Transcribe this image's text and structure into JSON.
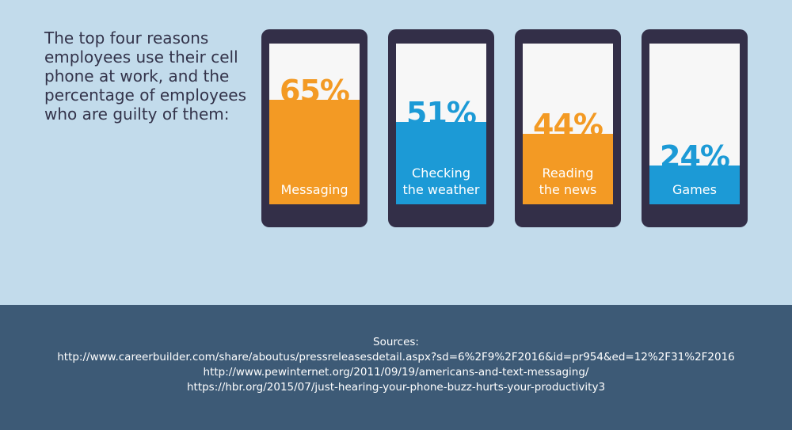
{
  "intro_text": "The top four reasons employees use their cell phone at work, and the percentage of employees who are guilty of them:",
  "chart_data": {
    "type": "bar",
    "categories": [
      "Messaging",
      "Checking the weather",
      "Reading the news",
      "Games"
    ],
    "values": [
      65,
      51,
      44,
      24
    ],
    "value_labels": [
      "65%",
      "51%",
      "44%",
      "24%"
    ],
    "label_lines": [
      [
        "Messaging"
      ],
      [
        "Checking",
        "the weather"
      ],
      [
        "Reading",
        "the news"
      ],
      [
        "Games"
      ]
    ],
    "colors": [
      "#f39a24",
      "#1c9ad6",
      "#f39a24",
      "#1c9ad6"
    ],
    "ylim": [
      0,
      100
    ],
    "unit": "%"
  },
  "sources": {
    "title": "Sources:",
    "links": [
      "http://www.careerbuilder.com/share/aboutus/pressreleasesdetail.aspx?sd=6%2F9%2F2016&id=pr954&ed=12%2F31%2F2016",
      "http://www.pewinternet.org/2011/09/19/americans-and-text-messaging/",
      "https://hbr.org/2015/07/just-hearing-your-phone-buzz-hurts-your-productivity3"
    ]
  },
  "colors": {
    "background": "#c2dbeb",
    "footer": "#3d5a76",
    "phone_body": "#332f48",
    "orange": "#f39a24",
    "blue": "#1c9ad6"
  }
}
